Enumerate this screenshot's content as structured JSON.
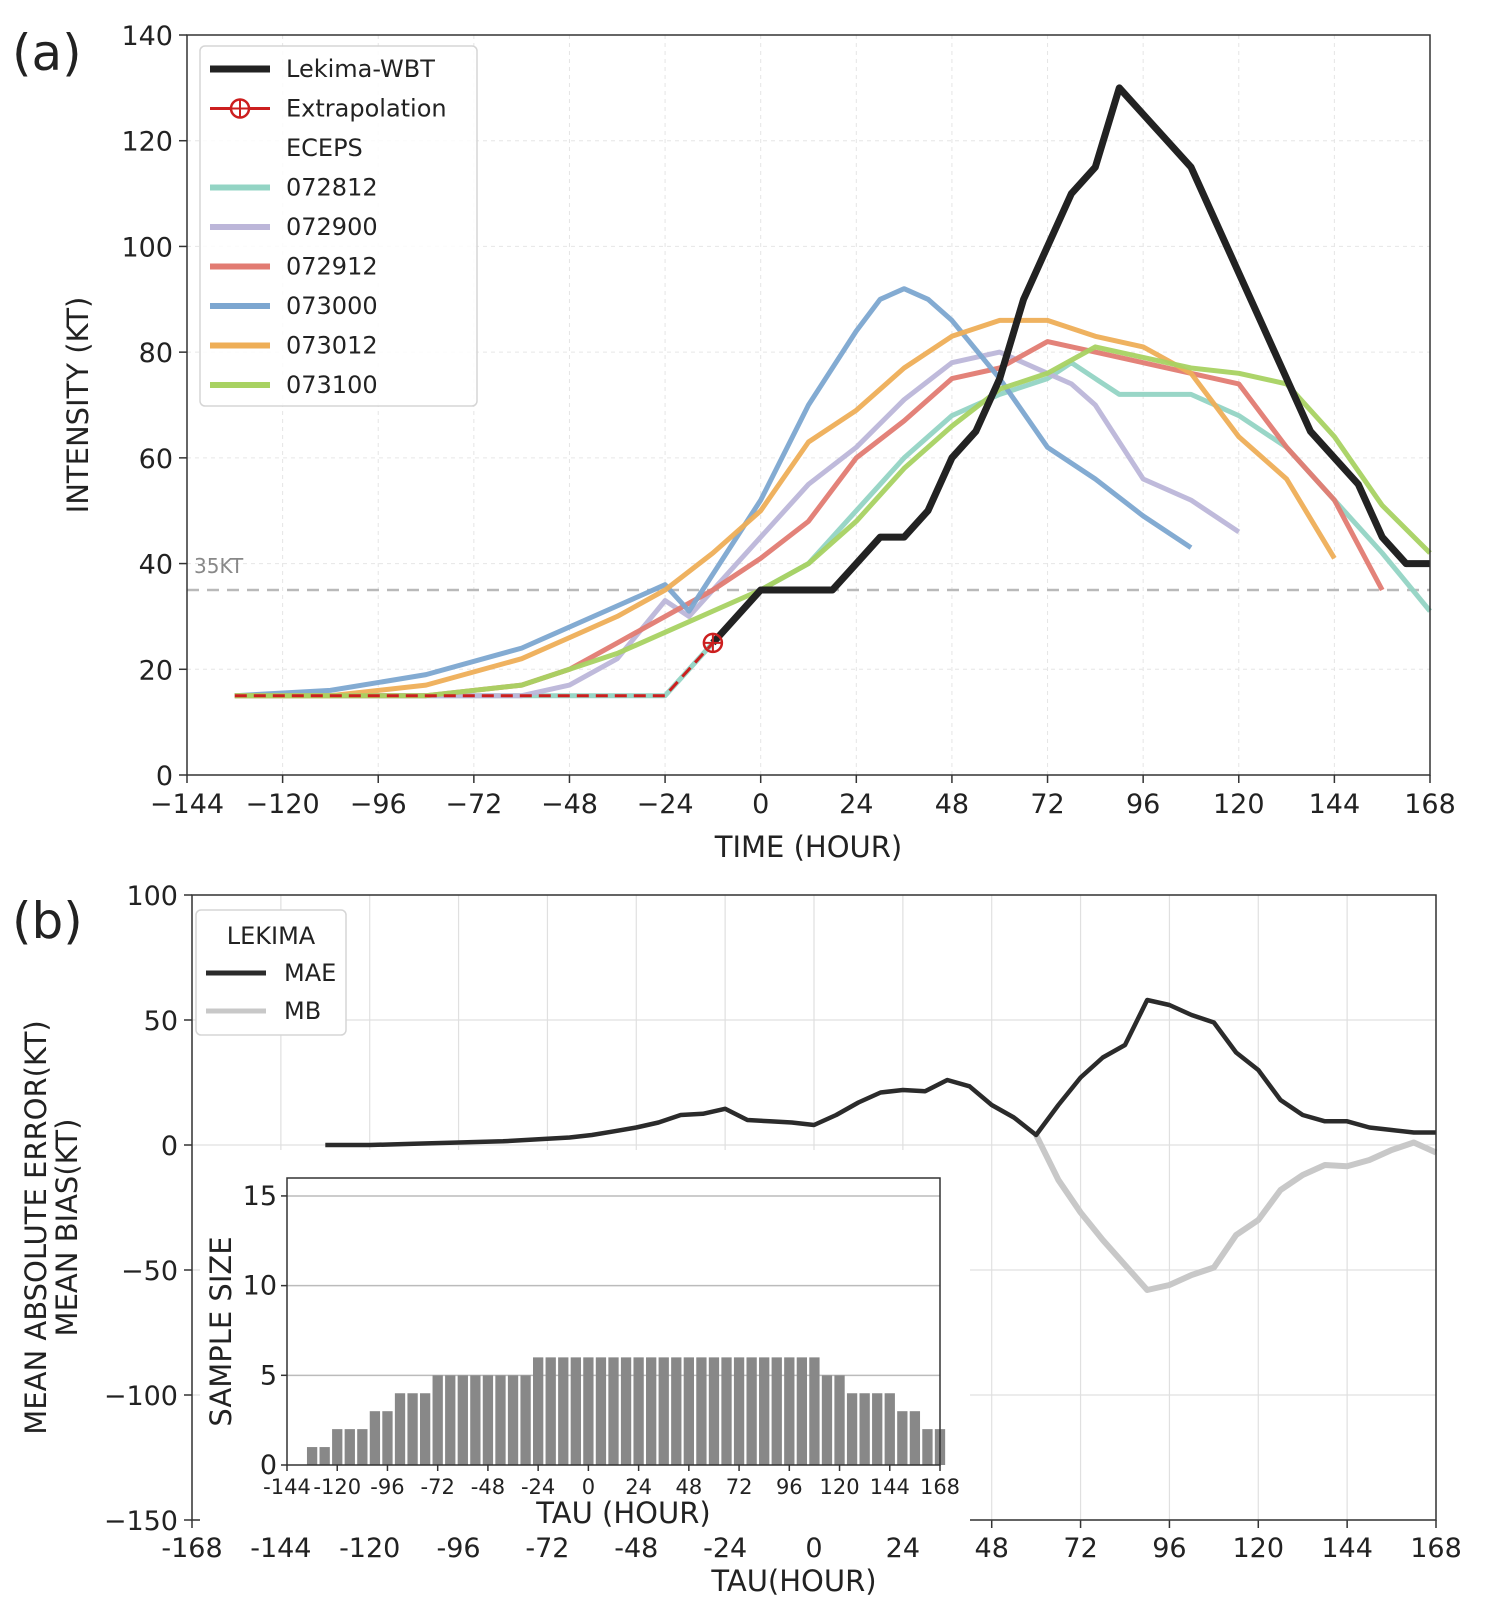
{
  "chart_data": [
    {
      "panel": "(a)",
      "type": "line",
      "xlabel": "TIME (HOUR)",
      "ylabel": "INTENSITY (KT)",
      "xlim": [
        -144,
        168
      ],
      "ylim": [
        0,
        140
      ],
      "xticks": [
        -144,
        -120,
        -96,
        -72,
        -48,
        -24,
        0,
        24,
        48,
        72,
        96,
        120,
        144,
        168
      ],
      "yticks": [
        0,
        20,
        40,
        60,
        80,
        100,
        120,
        140
      ],
      "xtick_labels": [
        "−144",
        "−120",
        "−96",
        "−72",
        "−48",
        "−24",
        "0",
        "24",
        "48",
        "72",
        "96",
        "120",
        "144",
        "168"
      ],
      "ytick_labels": [
        "0",
        "20",
        "40",
        "60",
        "80",
        "100",
        "120",
        "140"
      ],
      "grid": true,
      "reference_line": {
        "y": 35,
        "label": "35KT",
        "color": "#b9b9b9"
      },
      "legend": {
        "position": "top-left",
        "group_title": "ECEPS"
      },
      "series": [
        {
          "name": "072812",
          "color": "#93d4c4",
          "x": [
            -132,
            -108,
            -84,
            -60,
            -36,
            -24,
            -12,
            0,
            12,
            24,
            36,
            48,
            60,
            72,
            78,
            84,
            90,
            96,
            108,
            120,
            132,
            144,
            156,
            168
          ],
          "values": [
            15,
            15,
            15,
            15,
            15,
            15,
            25,
            35,
            40,
            50,
            60,
            68,
            72,
            75,
            78,
            75,
            72,
            72,
            72,
            68,
            62,
            52,
            42,
            31
          ]
        },
        {
          "name": "072900",
          "color": "#bcb6d9",
          "x": [
            -132,
            -108,
            -84,
            -60,
            -48,
            -36,
            -24,
            -18,
            -12,
            0,
            12,
            24,
            36,
            48,
            60,
            72,
            78,
            84,
            96,
            108,
            120
          ],
          "values": [
            15,
            15,
            15,
            15,
            17,
            22,
            33,
            30,
            35,
            45,
            55,
            62,
            71,
            78,
            80,
            76,
            74,
            70,
            56,
            52,
            46
          ]
        },
        {
          "name": "072912",
          "color": "#e27b72",
          "x": [
            -132,
            -108,
            -84,
            -60,
            -48,
            -36,
            -24,
            -12,
            0,
            12,
            24,
            36,
            48,
            60,
            72,
            84,
            96,
            108,
            120,
            132,
            144,
            156
          ],
          "values": [
            15,
            15,
            15,
            17,
            20,
            25,
            30,
            35,
            41,
            48,
            60,
            67,
            75,
            77,
            82,
            80,
            78,
            76,
            74,
            62,
            52,
            35
          ]
        },
        {
          "name": "073000",
          "color": "#7ca6d0",
          "x": [
            -132,
            -108,
            -84,
            -60,
            -48,
            -36,
            -24,
            -18,
            -12,
            0,
            12,
            24,
            30,
            36,
            42,
            48,
            60,
            72,
            84,
            96,
            108
          ],
          "values": [
            15,
            16,
            19,
            24,
            28,
            32,
            36,
            31,
            38,
            52,
            70,
            84,
            90,
            92,
            90,
            86,
            75,
            62,
            56,
            49,
            43
          ]
        },
        {
          "name": "073012",
          "color": "#eeae57",
          "x": [
            -132,
            -108,
            -84,
            -60,
            -48,
            -36,
            -24,
            -12,
            0,
            12,
            24,
            36,
            48,
            60,
            72,
            84,
            96,
            108,
            120,
            132,
            144
          ],
          "values": [
            15,
            15,
            17,
            22,
            26,
            30,
            35,
            42,
            50,
            63,
            69,
            77,
            83,
            86,
            86,
            83,
            81,
            76,
            64,
            56,
            41
          ]
        },
        {
          "name": "073100",
          "color": "#a8d262",
          "x": [
            -132,
            -108,
            -84,
            -60,
            -48,
            -36,
            -24,
            -12,
            0,
            12,
            24,
            36,
            48,
            60,
            72,
            84,
            96,
            108,
            120,
            132,
            144,
            156,
            168
          ],
          "values": [
            15,
            15,
            15,
            17,
            20,
            23,
            27,
            31,
            35,
            40,
            48,
            58,
            66,
            73,
            76,
            81,
            79,
            77,
            76,
            74,
            64,
            51,
            42
          ]
        },
        {
          "name": "Extrapolation",
          "color": "#cc1f1f",
          "style": "dashed",
          "marker": "circle-plus",
          "x": [
            -132,
            -24,
            -12
          ],
          "values": [
            15,
            15,
            25
          ]
        },
        {
          "name": "Lekima-WBT",
          "color": "#222222",
          "x": [
            -12,
            0,
            6,
            12,
            18,
            24,
            30,
            36,
            42,
            48,
            54,
            60,
            66,
            72,
            78,
            84,
            90,
            96,
            102,
            108,
            114,
            120,
            126,
            132,
            138,
            144,
            150,
            156,
            162,
            168
          ],
          "values": [
            25,
            35,
            35,
            35,
            35,
            40,
            45,
            45,
            50,
            60,
            65,
            75,
            90,
            100,
            110,
            115,
            130,
            125,
            120,
            115,
            105,
            95,
            85,
            75,
            65,
            60,
            55,
            45,
            40,
            40
          ]
        }
      ]
    },
    {
      "panel": "(b)",
      "type": "line",
      "xlabel": "TAU(HOUR)",
      "ylabel": "MEAN ABSOLUTE ERROR(KT)\nMEAN BIAS(KT)",
      "ylabel_lines": [
        "MEAN ABSOLUTE ERROR(KT)",
        "MEAN BIAS(KT)"
      ],
      "xlim": [
        -168,
        168
      ],
      "ylim": [
        -150,
        100
      ],
      "xticks": [
        -168,
        -144,
        -120,
        -96,
        -72,
        -48,
        -24,
        0,
        24,
        48,
        72,
        96,
        120,
        144,
        168
      ],
      "yticks": [
        -150,
        -100,
        -50,
        0,
        50,
        100
      ],
      "xtick_labels": [
        "-168",
        "-144",
        "-120",
        "-96",
        "-72",
        "-48",
        "-24",
        "0",
        "24",
        "48",
        "72",
        "96",
        "120",
        "144",
        "168"
      ],
      "ytick_labels": [
        "−150",
        "−100",
        "−50",
        "0",
        "50",
        "100"
      ],
      "grid": true,
      "legend": {
        "position": "top-left",
        "title": "LEKIMA"
      },
      "series": [
        {
          "name": "MAE",
          "color": "#2b2b2b",
          "x": [
            -132,
            -120,
            -108,
            -96,
            -84,
            -72,
            -66,
            -60,
            -54,
            -48,
            -42,
            -36,
            -30,
            -24,
            -18,
            -12,
            -6,
            0,
            6,
            12,
            18,
            24,
            30,
            36,
            42,
            48,
            54,
            60,
            66,
            72,
            78,
            84,
            90,
            96,
            102,
            108,
            114,
            120,
            126,
            132,
            138,
            144,
            150,
            156,
            162,
            168
          ],
          "values": [
            0,
            0,
            0.5,
            1,
            1.5,
            2.5,
            3,
            4,
            5.5,
            7,
            9,
            12,
            12.5,
            14.5,
            10,
            9.5,
            9,
            8,
            12,
            17,
            21,
            22,
            21.5,
            26,
            23.5,
            16,
            11,
            4,
            16,
            27,
            35,
            40,
            58,
            56,
            52,
            49,
            37,
            30,
            18,
            12,
            9.5,
            9.5,
            7,
            6,
            5,
            5
          ]
        },
        {
          "name": "MB",
          "color": "#c8c8c8",
          "x": [
            60,
            66,
            72,
            78,
            84,
            90,
            96,
            102,
            108,
            114,
            120,
            126,
            132,
            138,
            144,
            150,
            156,
            162,
            168
          ],
          "values": [
            4,
            -14,
            -27,
            -38,
            -48,
            -58,
            -56,
            -52,
            -49,
            -36,
            -30,
            -18,
            -12,
            -8,
            -8.5,
            -6,
            -2,
            1,
            -3
          ]
        }
      ]
    },
    {
      "panel": "(b) inset",
      "type": "bar",
      "xlabel": "TAU (HOUR)",
      "ylabel": "SAMPLE SIZE",
      "xlim": [
        -144,
        168
      ],
      "ylim": [
        0,
        16
      ],
      "xticks": [
        -144,
        -120,
        -96,
        -72,
        -48,
        -24,
        0,
        24,
        48,
        72,
        96,
        120,
        144,
        168
      ],
      "yticks": [
        0,
        5,
        10,
        15
      ],
      "xtick_labels": [
        "-144",
        "-120",
        "-96",
        "-72",
        "-48",
        "-24",
        "0",
        "24",
        "48",
        "72",
        "96",
        "120",
        "144",
        "168"
      ],
      "ytick_labels": [
        "0",
        "5",
        "10",
        "15"
      ],
      "bar_color": "#888888",
      "x": [
        -132,
        -126,
        -120,
        -114,
        -108,
        -102,
        -96,
        -90,
        -84,
        -78,
        -72,
        -66,
        -60,
        -54,
        -48,
        -42,
        -36,
        -30,
        -24,
        -18,
        -12,
        -6,
        0,
        6,
        12,
        18,
        24,
        30,
        36,
        42,
        48,
        54,
        60,
        66,
        72,
        78,
        84,
        90,
        96,
        102,
        108,
        114,
        120,
        126,
        132,
        138,
        144,
        150,
        156,
        162,
        168
      ],
      "values": [
        1,
        1,
        2,
        2,
        2,
        3,
        3,
        4,
        4,
        4,
        5,
        5,
        5,
        5,
        5,
        5,
        5,
        5,
        6,
        6,
        6,
        6,
        6,
        6,
        6,
        6,
        6,
        6,
        6,
        6,
        6,
        6,
        6,
        6,
        6,
        6,
        6,
        6,
        6,
        6,
        6,
        5,
        5,
        4,
        4,
        4,
        4,
        3,
        3,
        2,
        2
      ]
    }
  ]
}
